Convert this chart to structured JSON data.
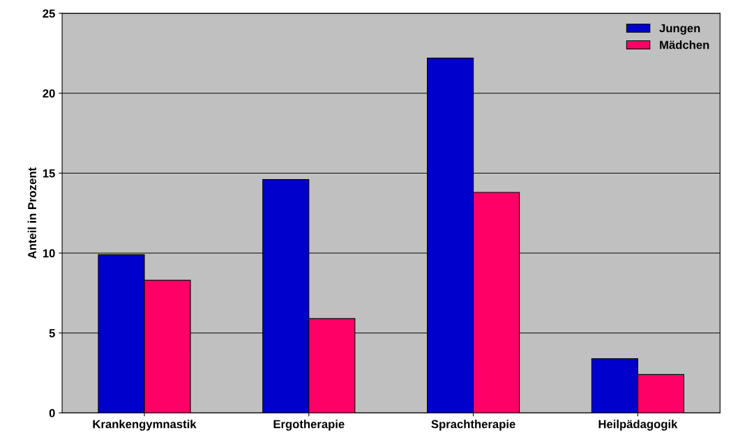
{
  "chart_data": {
    "type": "bar",
    "ylabel": "Anteil in Prozent",
    "categories": [
      "Krankengymnastik",
      "Ergotherapie",
      "Sprachtherapie",
      "Heilpädagogik"
    ],
    "series": [
      {
        "name": "Jungen",
        "color": "#0000cc",
        "values": [
          9.9,
          14.6,
          22.2,
          3.4
        ]
      },
      {
        "name": "Mädchen",
        "color": "#ff0066",
        "values": [
          8.3,
          5.9,
          13.8,
          2.4
        ]
      }
    ],
    "ylim": [
      0,
      25
    ],
    "yticks": [
      0,
      5,
      10,
      15,
      20,
      25
    ],
    "grid": "y",
    "legend": "top right"
  }
}
